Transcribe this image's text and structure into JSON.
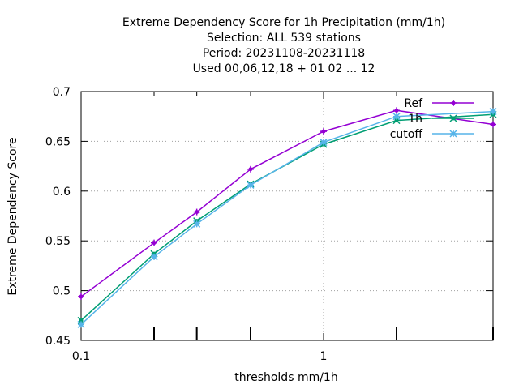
{
  "chart_data": {
    "type": "line",
    "title_lines": [
      "Extreme Dependency Score  for 1h Precipitation (mm/1h)",
      "Selection: ALL     539 stations",
      "Period: 20231108-20231118",
      "Used  00,06,12,18 + 01 02 ... 12"
    ],
    "xlabel": "thresholds mm/1h",
    "ylabel": "Extreme Dependency Score",
    "x_scale": "log",
    "xlim": [
      0.1,
      5
    ],
    "ylim": [
      0.45,
      0.7
    ],
    "x_ticks": [
      {
        "value": 0.1,
        "label": "0.1"
      },
      {
        "value": 1,
        "label": "1"
      }
    ],
    "x_minor_ticks": [
      0.2,
      0.3,
      0.5,
      2,
      5
    ],
    "y_ticks": [
      {
        "value": 0.45,
        "label": "0.45"
      },
      {
        "value": 0.5,
        "label": "0.5"
      },
      {
        "value": 0.55,
        "label": "0.55"
      },
      {
        "value": 0.6,
        "label": "0.6"
      },
      {
        "value": 0.65,
        "label": "0.65"
      },
      {
        "value": 0.7,
        "label": "0.7"
      }
    ],
    "grid": true,
    "legend_position": "top-right",
    "x": [
      0.1,
      0.2,
      0.3,
      0.5,
      1,
      2,
      5
    ],
    "series": [
      {
        "name": "Ref",
        "color": "#9400d3",
        "marker": "plus",
        "values": [
          0.494,
          0.548,
          0.579,
          0.622,
          0.66,
          0.681,
          0.667
        ]
      },
      {
        "name": "1h",
        "color": "#009e73",
        "marker": "x",
        "values": [
          0.47,
          0.537,
          0.57,
          0.607,
          0.647,
          0.671,
          0.677
        ]
      },
      {
        "name": "cutoff",
        "color": "#56b4e9",
        "marker": "star",
        "values": [
          0.466,
          0.534,
          0.567,
          0.606,
          0.649,
          0.675,
          0.68
        ]
      }
    ]
  }
}
